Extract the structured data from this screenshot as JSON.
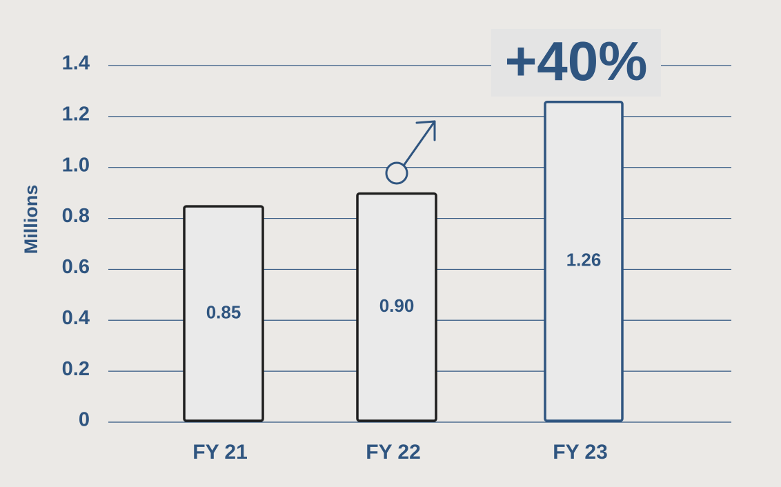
{
  "colors": {
    "background": "#ebe9e6",
    "accent": "#2f5580",
    "grid": "#2f5580",
    "bar_fill": "#eaeaea",
    "bar_stroke_default": "#1e1e1e",
    "bar_stroke_highlight": "#2f5580",
    "annotation_box": "#e4e4e4"
  },
  "annotation": {
    "text": "+40%",
    "icon": "arrow-up-right-icon"
  },
  "chart_data": {
    "type": "bar",
    "categories": [
      "FY 21",
      "FY 22",
      "FY 23"
    ],
    "values": [
      0.85,
      0.9,
      1.26
    ],
    "value_labels": [
      "0.85",
      "0.90",
      "1.26"
    ],
    "highlight_index": 2,
    "title": "",
    "xlabel": "",
    "ylabel": "Millions",
    "ylim": [
      0,
      1.4
    ],
    "yticks": [
      0,
      0.2,
      0.4,
      0.6,
      0.8,
      1.0,
      1.2,
      1.4
    ],
    "ytick_labels": [
      "0",
      "0.2",
      "0.4",
      "0.6",
      "0.8",
      "1.0",
      "1.2",
      "1.4"
    ],
    "grid": true,
    "legend": "none"
  }
}
